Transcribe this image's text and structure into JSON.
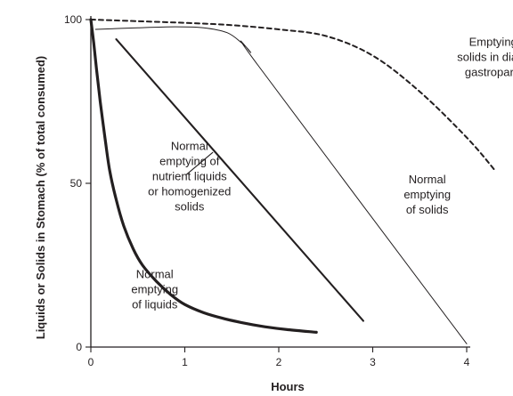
{
  "chart_data": {
    "type": "line",
    "title": "",
    "xlabel": "Hours",
    "ylabel": "Liquids or Solids in Stomach (% of total consumed)",
    "xlim": [
      0,
      4
    ],
    "ylim": [
      0,
      100
    ],
    "xticks": [
      0,
      1,
      2,
      3,
      4
    ],
    "yticks": [
      0,
      50,
      100
    ],
    "grid": false,
    "legend": "none",
    "series": [
      {
        "name": "Normal emptying of liquids",
        "style": "thick-solid",
        "x": [
          0,
          0.03,
          0.06,
          0.1,
          0.15,
          0.2,
          0.27,
          0.35,
          0.45,
          0.55,
          0.7,
          0.85,
          1.0,
          1.2,
          1.4,
          1.6,
          1.85,
          2.1,
          2.4
        ],
        "y": [
          100,
          93,
          85,
          75,
          64,
          54,
          45,
          37,
          30,
          25,
          20,
          16,
          13,
          10.5,
          8.8,
          7.5,
          6.2,
          5.3,
          4.5
        ]
      },
      {
        "name": "Normal emptying of nutrient liquids or homogenized solids",
        "style": "medium-solid",
        "x": [
          0.27,
          2.9
        ],
        "y": [
          94,
          8
        ]
      },
      {
        "name": "Normal emptying of solids",
        "style": "thin-solid",
        "x": [
          0.05,
          0.5,
          0.9,
          1.2,
          1.45,
          1.6,
          1.7,
          1.78,
          4.0
        ],
        "y": [
          97,
          97.5,
          97.8,
          97.5,
          96,
          93,
          90,
          86,
          1
        ]
      },
      {
        "name": "Emptying of solids in diabetic gastroparesis",
        "style": "dashed",
        "x": [
          0,
          0.5,
          1.0,
          1.5,
          2.0,
          2.5,
          3.0,
          3.5,
          4.0,
          4.3
        ],
        "y": [
          100,
          99.5,
          99,
          98.3,
          97,
          95,
          89,
          78,
          64,
          54
        ]
      }
    ],
    "annotations": [
      {
        "lines": [
          "Normal",
          "emptying",
          "of liquids"
        ],
        "anchor": "middle",
        "x": 0.68,
        "y": 17.5
      },
      {
        "lines": [
          "Normal",
          "emptying of",
          "nutrient liquids",
          "or homogenized",
          "solids"
        ],
        "anchor": "middle",
        "x": 1.05,
        "y": 52
      },
      {
        "lines": [
          "Normal",
          "emptying",
          "of solids"
        ],
        "anchor": "middle",
        "x": 3.58,
        "y": 46.5
      },
      {
        "lines": [
          "Emptying of",
          "solids in diabetic",
          "gastroparesis"
        ],
        "anchor": "middle",
        "x": 4.35,
        "y": 88.5
      }
    ],
    "pointer": {
      "series": "Normal emptying of nutrient liquids or homogenized solids",
      "from": [
        1.01,
        52.5
      ],
      "to": [
        1.3,
        59.5
      ]
    }
  }
}
